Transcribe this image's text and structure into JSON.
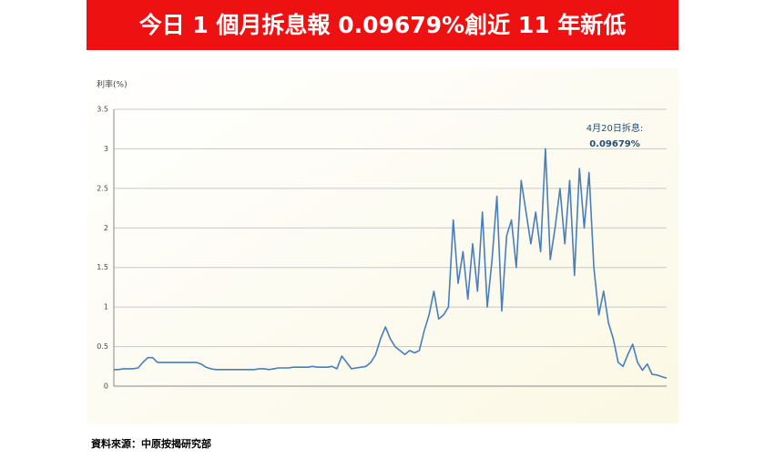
{
  "chart_data": {
    "type": "line",
    "title": "今日 1 個月拆息報 0.09679%創近 11 年新低",
    "y_label": "利率(%)",
    "annotation": [
      "4月20日拆息:",
      "0.09679%"
    ],
    "source": "資料來源：中原按揭研究部",
    "color": "#4a7ebb",
    "ylim": [
      0,
      3.5
    ],
    "yticks": [
      0,
      0.5,
      1,
      1.5,
      2,
      2.5,
      3,
      3.5
    ],
    "grid": true,
    "values": [
      0.21,
      0.21,
      0.22,
      0.22,
      0.22,
      0.23,
      0.3,
      0.36,
      0.36,
      0.3,
      0.3,
      0.3,
      0.3,
      0.3,
      0.3,
      0.3,
      0.3,
      0.3,
      0.28,
      0.24,
      0.22,
      0.21,
      0.21,
      0.21,
      0.21,
      0.21,
      0.21,
      0.21,
      0.21,
      0.21,
      0.22,
      0.22,
      0.21,
      0.22,
      0.23,
      0.23,
      0.23,
      0.24,
      0.24,
      0.24,
      0.24,
      0.25,
      0.24,
      0.24,
      0.24,
      0.25,
      0.22,
      0.38,
      0.3,
      0.22,
      0.23,
      0.24,
      0.25,
      0.3,
      0.4,
      0.6,
      0.75,
      0.6,
      0.5,
      0.45,
      0.4,
      0.45,
      0.42,
      0.45,
      0.7,
      0.9,
      1.2,
      0.85,
      0.9,
      1.0,
      2.1,
      1.3,
      1.7,
      1.1,
      1.8,
      1.2,
      2.2,
      1.0,
      1.6,
      2.4,
      0.95,
      1.9,
      2.1,
      1.5,
      2.6,
      2.2,
      1.8,
      2.2,
      1.7,
      3.0,
      1.6,
      2.0,
      2.5,
      1.8,
      2.6,
      1.4,
      2.75,
      2.0,
      2.7,
      1.5,
      0.9,
      1.2,
      0.8,
      0.6,
      0.3,
      0.25,
      0.4,
      0.53,
      0.3,
      0.2,
      0.28,
      0.15,
      0.14,
      0.12,
      0.1
    ]
  }
}
